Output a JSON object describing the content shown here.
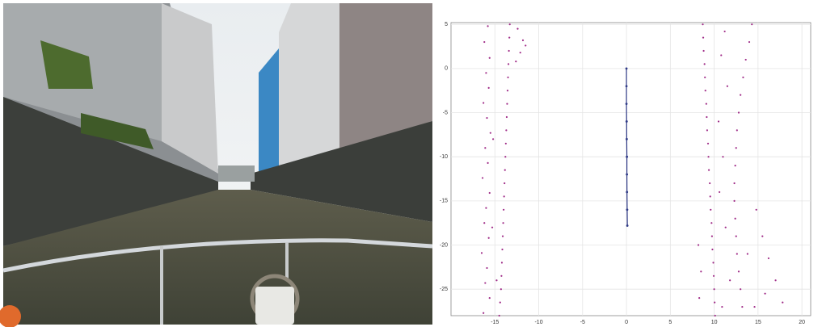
{
  "chart_data": {
    "type": "scatter",
    "xlim": [
      -20,
      21
    ],
    "ylim": [
      -28,
      5.2
    ],
    "xticks": [
      -15,
      -10,
      -5,
      0,
      5,
      10,
      15,
      20
    ],
    "yticks": [
      5,
      0,
      -5,
      -10,
      -15,
      -20,
      -25
    ],
    "grid": true,
    "series": [
      {
        "color": "#a02c88",
        "line": false,
        "x": [
          -13.3,
          -13.35,
          -13.4,
          -13.45,
          -13.5,
          -13.55,
          -13.6,
          -13.65,
          -13.7,
          -13.75,
          -13.8,
          -13.85,
          -13.9,
          -13.95,
          -14.0,
          -14.05,
          -14.1,
          -14.15,
          -14.2,
          -14.25,
          -14.3,
          -14.4,
          -14.5,
          -15.8,
          -16.2,
          -15.6,
          -16.0,
          -15.7,
          -16.3,
          -15.9,
          -15.5,
          -16.1,
          -15.8,
          -16.4,
          -15.6,
          -16.0,
          -16.2,
          -15.7,
          -16.5,
          -15.9,
          -16.1,
          -15.6,
          -16.3,
          -15.3,
          -15.2,
          -14.8,
          -12.4,
          -11.8,
          -12.1,
          -11.5,
          -12.6,
          8.7,
          8.75,
          8.8,
          8.9,
          8.95,
          9.0,
          9.1,
          9.15,
          9.2,
          9.3,
          9.35,
          9.4,
          9.5,
          9.55,
          9.6,
          9.7,
          9.75,
          9.8,
          9.9,
          9.95,
          10.0,
          10.05,
          10.1,
          14.3,
          14.0,
          13.6,
          13.3,
          13.0,
          12.8,
          12.6,
          12.5,
          12.4,
          12.3,
          12.3,
          12.4,
          12.5,
          12.6,
          12.8,
          13.0,
          13.2,
          11.2,
          10.8,
          11.5,
          10.5,
          11.0,
          10.6,
          11.3,
          8.2,
          8.5,
          8.3,
          14.8,
          15.5,
          16.2,
          17.0,
          15.8,
          14.6,
          17.8,
          13.8,
          11.8,
          10.9
        ],
        "values": [
          5,
          3.5,
          2,
          0.5,
          -1,
          -2.5,
          -4,
          -5.5,
          -7,
          -8.5,
          -10,
          -11.5,
          -13,
          -14.5,
          -16,
          -17.5,
          -19,
          -20.5,
          -22,
          -23.5,
          -25,
          -26.5,
          -28,
          4.8,
          3,
          1.2,
          -0.5,
          -2.2,
          -3.9,
          -5.6,
          -7.3,
          -9,
          -10.7,
          -12.4,
          -14.1,
          -15.8,
          -17.5,
          -19.2,
          -20.9,
          -22.6,
          -24.3,
          -26,
          -27.7,
          -18,
          -8,
          -24,
          4.5,
          3.2,
          1.8,
          2.6,
          0.8,
          5,
          3.5,
          2,
          0.5,
          -1,
          -2.5,
          -4,
          -5.5,
          -7,
          -8.5,
          -10,
          -11.5,
          -13,
          -14.5,
          -16,
          -17.5,
          -19,
          -20.5,
          -22,
          -23.5,
          -25,
          -26.5,
          -28,
          5,
          3,
          1,
          -1,
          -3,
          -5,
          -7,
          -9,
          -11,
          -13,
          -15,
          -17,
          -19,
          -21,
          -23,
          -25,
          -27,
          4.2,
          1.5,
          -2,
          -6,
          -10,
          -14,
          -18,
          -20,
          -23,
          -26,
          -16,
          -19,
          -21.5,
          -24,
          -25.5,
          -27,
          -26.5,
          -21,
          -24,
          -27
        ]
      },
      {
        "color": "#2f3a86",
        "line": true,
        "x": [
          0,
          0,
          0,
          0.02,
          0.03,
          0.05,
          0.05,
          0.06,
          0.08,
          0.1
        ],
        "values": [
          0,
          -2,
          -4,
          -6,
          -8,
          -10,
          -12,
          -14,
          -16,
          -17.8
        ]
      }
    ]
  }
}
